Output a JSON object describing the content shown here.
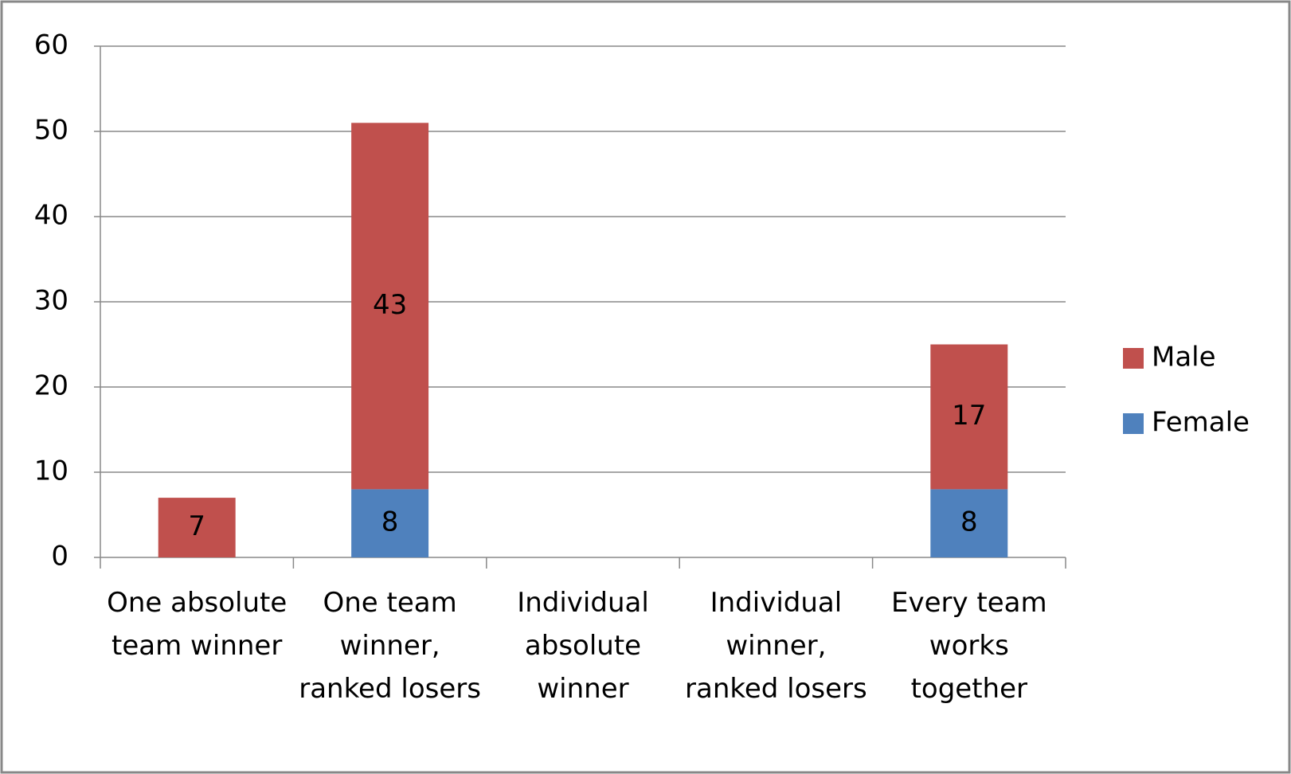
{
  "chart_data": {
    "type": "stacked_bar",
    "categories": [
      "One absolute team winner",
      "One team winner, ranked losers",
      "Individual absolute winner",
      "Individual winner, ranked losers",
      "Every team works together"
    ],
    "series": [
      {
        "name": "Female",
        "color": "#4f81bd",
        "values": [
          null,
          8,
          null,
          null,
          8
        ]
      },
      {
        "name": "Male",
        "color": "#c0504d",
        "values": [
          7,
          43,
          null,
          null,
          17
        ]
      }
    ],
    "ylim": [
      0,
      60
    ],
    "yticks": [
      0,
      10,
      20,
      30,
      40,
      50,
      60
    ],
    "grid": true,
    "legend": "right"
  }
}
